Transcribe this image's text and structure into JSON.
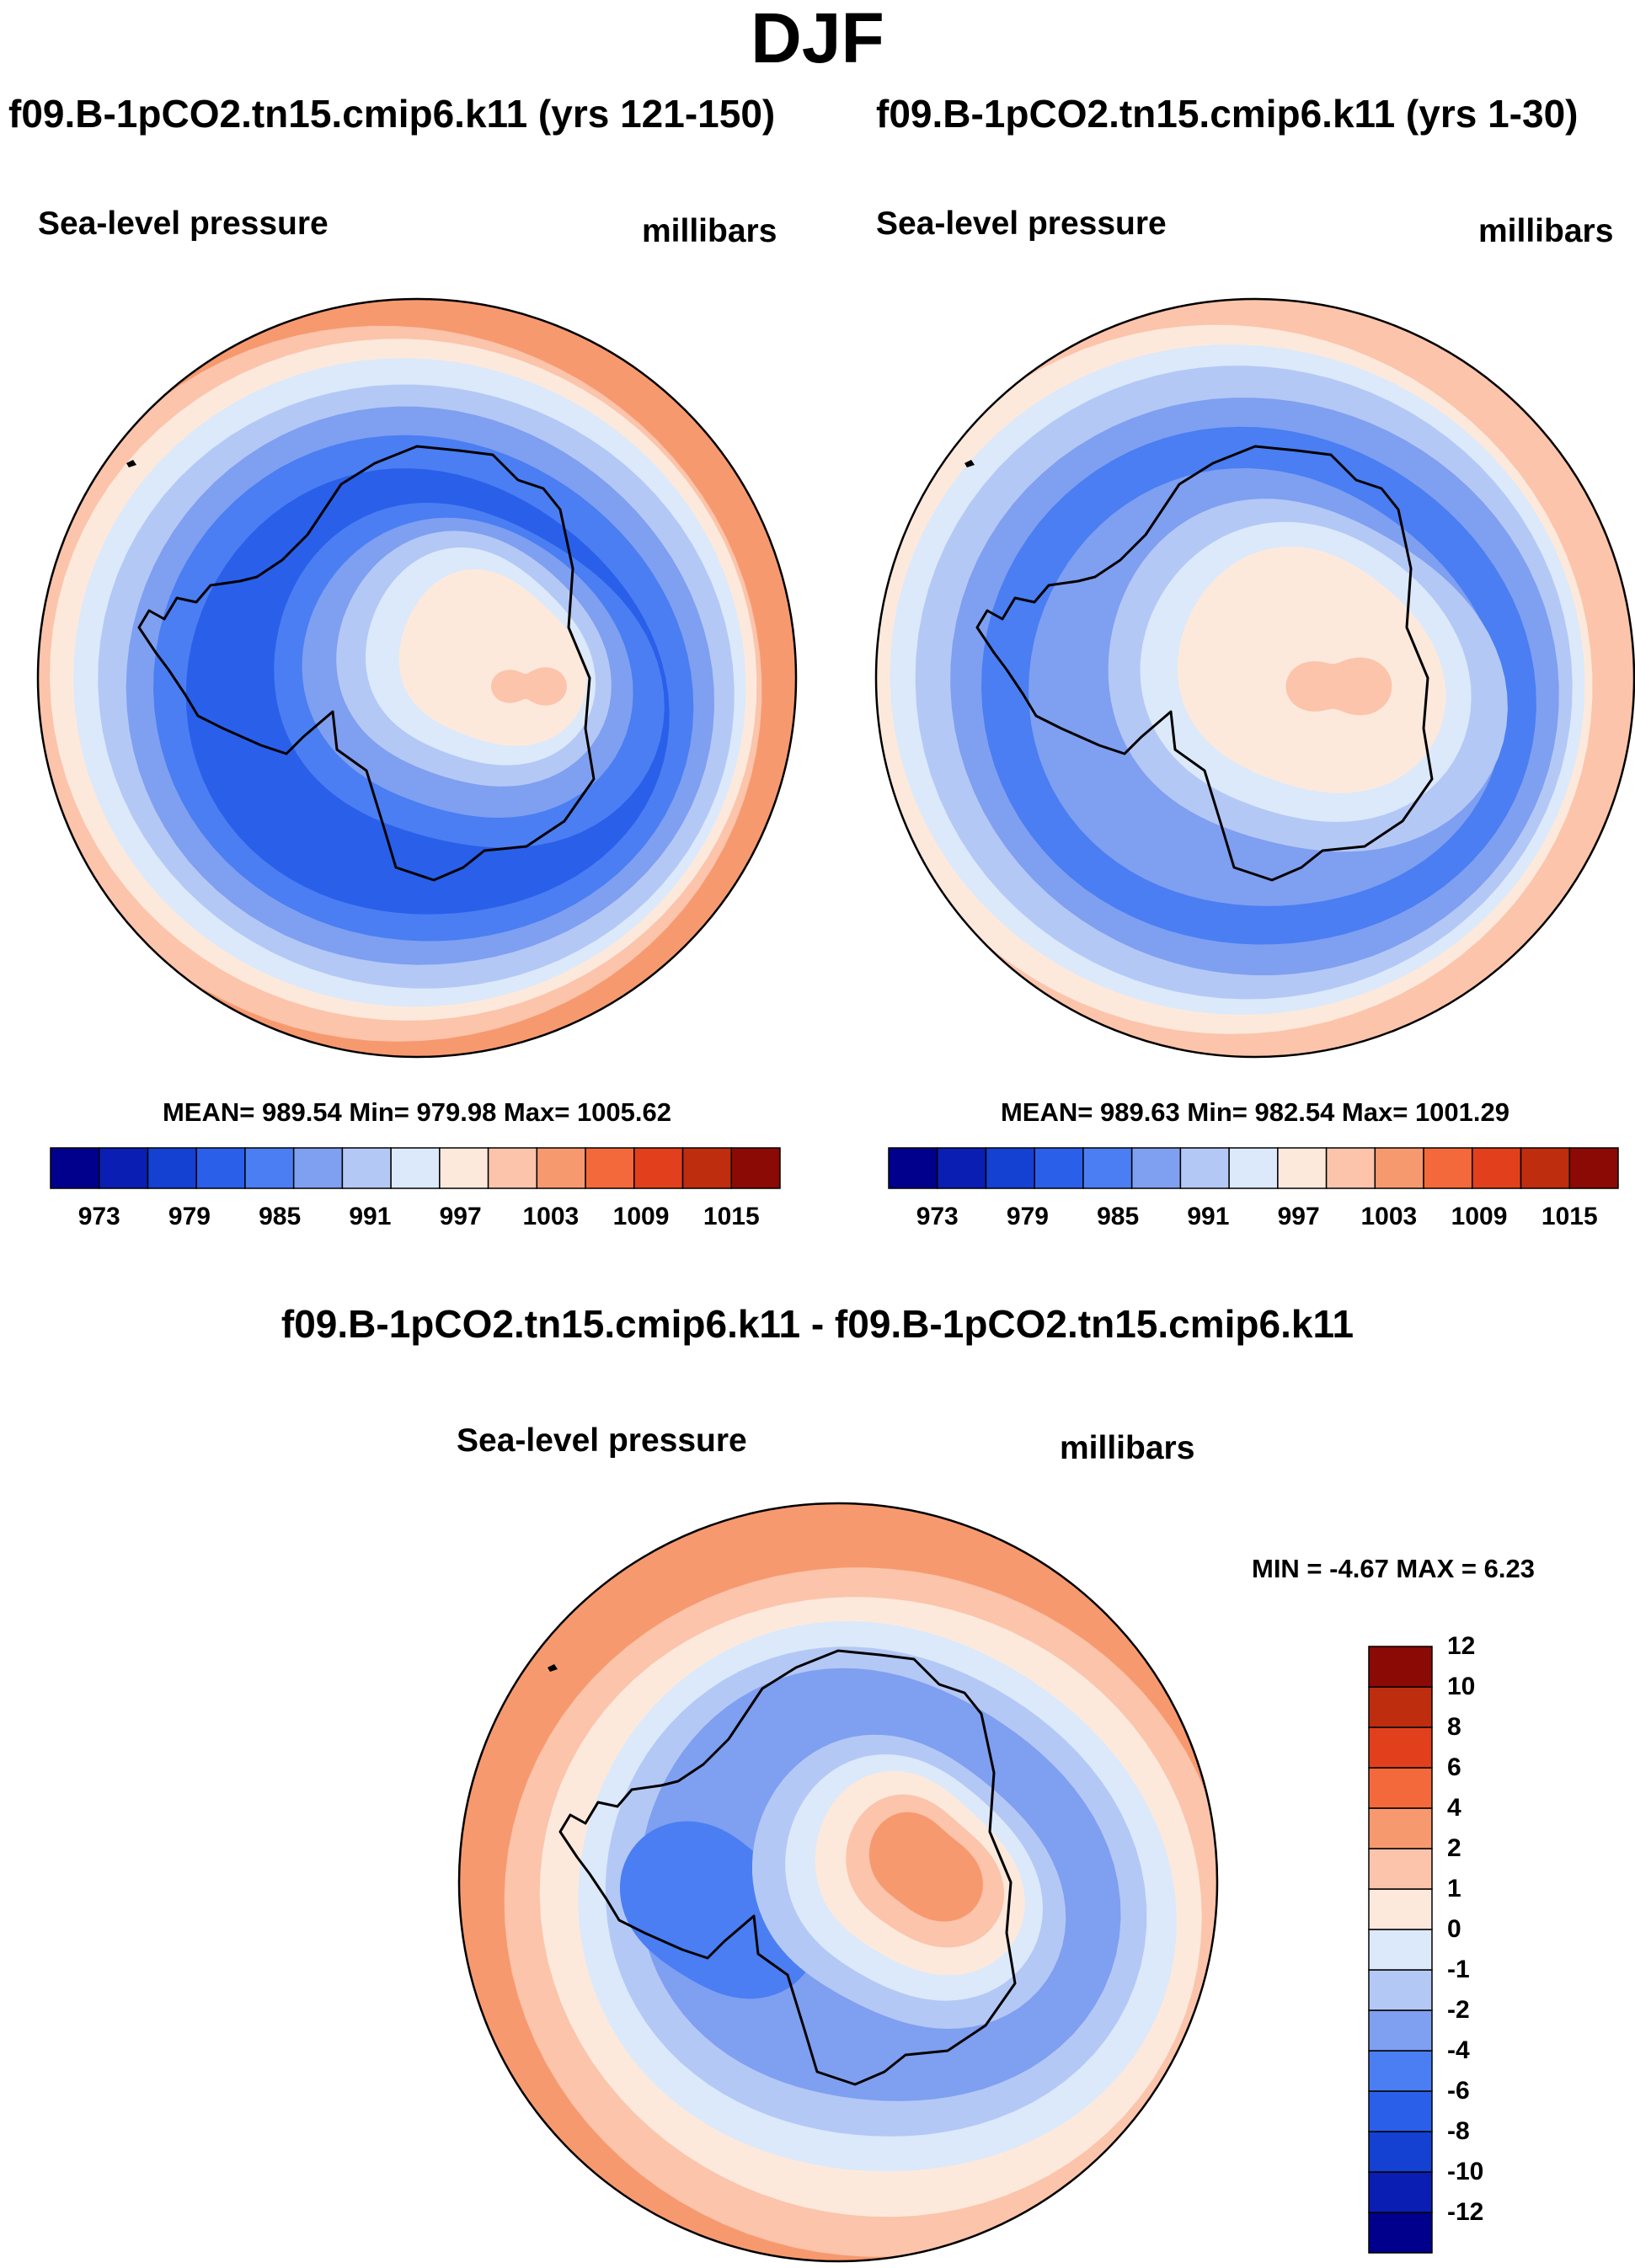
{
  "figure_title": "DJF",
  "chart_data": [
    {
      "type": "heatmap",
      "projection": "south-polar-stereographic",
      "title": "f09.B-1pCO2.tn15.cmip6.k11 (yrs 121-150)",
      "left_label": "Sea-level pressure",
      "right_label": "millibars",
      "stats_text": "MEAN= 989.54  Min= 979.98  Max= 1005.62",
      "mean": 989.54,
      "min": 979.98,
      "max": 1005.62,
      "colorbar": {
        "orientation": "horizontal",
        "levels": [
          973,
          976,
          979,
          982,
          985,
          988,
          991,
          994,
          997,
          1000,
          1003,
          1006,
          1009,
          1012,
          1015
        ],
        "tick_labels": [
          "973",
          "979",
          "985",
          "991",
          "997",
          "1003",
          "1009",
          "1015"
        ],
        "colors": [
          "#00008c",
          "#0a1eb4",
          "#1441d2",
          "#2a5fea",
          "#4a7ef2",
          "#7f9ff0",
          "#b4c8f6",
          "#dbe9fa",
          "#fde9dc",
          "#fbc4ab",
          "#f7996f",
          "#f3693b",
          "#e2401c",
          "#bf2d0f",
          "#8c0a05"
        ]
      }
    },
    {
      "type": "heatmap",
      "projection": "south-polar-stereographic",
      "title": "f09.B-1pCO2.tn15.cmip6.k11 (yrs 1-30)",
      "left_label": "Sea-level pressure",
      "right_label": "millibars",
      "stats_text": "MEAN= 989.63  Min= 982.54  Max= 1001.29",
      "mean": 989.63,
      "min": 982.54,
      "max": 1001.29,
      "colorbar": {
        "orientation": "horizontal",
        "levels": [
          973,
          976,
          979,
          982,
          985,
          988,
          991,
          994,
          997,
          1000,
          1003,
          1006,
          1009,
          1012,
          1015
        ],
        "tick_labels": [
          "973",
          "979",
          "985",
          "991",
          "997",
          "1003",
          "1009",
          "1015"
        ],
        "colors": [
          "#00008c",
          "#0a1eb4",
          "#1441d2",
          "#2a5fea",
          "#4a7ef2",
          "#7f9ff0",
          "#b4c8f6",
          "#dbe9fa",
          "#fde9dc",
          "#fbc4ab",
          "#f7996f",
          "#f3693b",
          "#e2401c",
          "#bf2d0f",
          "#8c0a05"
        ]
      }
    },
    {
      "type": "heatmap",
      "projection": "south-polar-stereographic",
      "title": "f09.B-1pCO2.tn15.cmip6.k11 - f09.B-1pCO2.tn15.cmip6.k11",
      "left_label": "Sea-level pressure",
      "right_label": "millibars",
      "stats_text": "MIN =  -4.67 MAX =   6.23",
      "min": -4.67,
      "max": 6.23,
      "colorbar": {
        "orientation": "vertical",
        "levels": [
          -12,
          -10,
          -8,
          -6,
          -4,
          -2,
          -1,
          0,
          1,
          2,
          4,
          6,
          8,
          10,
          12
        ],
        "tick_labels": [
          "-12",
          "-10",
          "-8",
          "-6",
          "-4",
          "-2",
          "-1",
          "0",
          "1",
          "2",
          "4",
          "6",
          "8",
          "10",
          "12"
        ],
        "colors": [
          "#00008c",
          "#0a1eb4",
          "#1441d2",
          "#2a5fea",
          "#4a7ef2",
          "#7f9ff0",
          "#b4c8f6",
          "#dbe9fa",
          "#fde9dc",
          "#fbc4ab",
          "#f7996f",
          "#f3693b",
          "#e2401c",
          "#bf2d0f",
          "#8c0a05"
        ]
      }
    }
  ]
}
